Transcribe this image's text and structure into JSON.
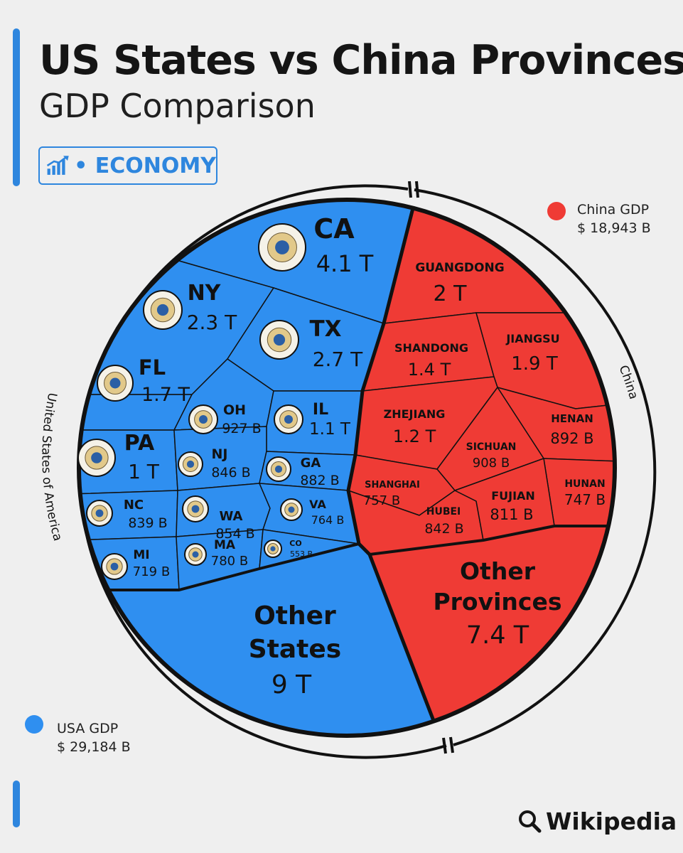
{
  "header": {
    "title": "US States vs China Provinces",
    "subtitle": "GDP Comparison",
    "badge_label": "• ECONOMY",
    "badge_icon": "chart-growth-icon"
  },
  "legend": {
    "china": {
      "name": "China GDP",
      "value": "$ 18,943 B",
      "color": "#ef3b35"
    },
    "usa": {
      "name": "USA GDP",
      "value": "$ 29,184 B",
      "color": "#2f8ff0"
    }
  },
  "ring_labels": {
    "usa": "United States of America",
    "china": "China"
  },
  "source": {
    "label": "Wikipedia",
    "icon": "search-icon"
  },
  "colors": {
    "usa": "#2f8ff0",
    "china": "#ef3b35",
    "background": "#efefef",
    "accent": "#2e86de"
  },
  "chart_data": {
    "type": "voronoi treemap",
    "title": "US States vs China Provinces",
    "subtitle": "GDP Comparison",
    "series": [
      {
        "name": "USA GDP",
        "total": "$ 29,184 B",
        "cells": [
          {
            "id": "CA",
            "label": "CA",
            "value_label": "4.1 T",
            "value_billions": 4100,
            "icon": "california-flag-icon"
          },
          {
            "id": "NY",
            "label": "NY",
            "value_label": "2.3 T",
            "value_billions": 2300,
            "icon": "new-york-seal-icon"
          },
          {
            "id": "TX",
            "label": "TX",
            "value_label": "2.7 T",
            "value_billions": 2700,
            "icon": "texas-flag-icon"
          },
          {
            "id": "FL",
            "label": "FL",
            "value_label": "1.7 T",
            "value_billions": 1700,
            "icon": "florida-flag-icon"
          },
          {
            "id": "OH",
            "label": "OH",
            "value_label": "927 B",
            "value_billions": 927,
            "icon": "ohio-flag-icon"
          },
          {
            "id": "IL",
            "label": "IL",
            "value_label": "1.1 T",
            "value_billions": 1100,
            "icon": "illinois-seal-icon"
          },
          {
            "id": "PA",
            "label": "PA",
            "value_label": "1 T",
            "value_billions": 1000,
            "icon": "pennsylvania-seal-icon"
          },
          {
            "id": "NJ",
            "label": "NJ",
            "value_label": "846 B",
            "value_billions": 846,
            "icon": "new-jersey-seal-icon"
          },
          {
            "id": "GA",
            "label": "GA",
            "value_label": "882 B",
            "value_billions": 882,
            "icon": "georgia-flag-icon"
          },
          {
            "id": "NC",
            "label": "NC",
            "value_label": "839 B",
            "value_billions": 839,
            "icon": "north-carolina-flag-icon"
          },
          {
            "id": "WA",
            "label": "WA",
            "value_label": "854 B",
            "value_billions": 854,
            "icon": "washington-seal-icon"
          },
          {
            "id": "VA",
            "label": "VA",
            "value_label": "764 B",
            "value_billions": 764,
            "icon": "virginia-seal-icon"
          },
          {
            "id": "MI",
            "label": "MI",
            "value_label": "719 B",
            "value_billions": 719,
            "icon": "michigan-seal-icon"
          },
          {
            "id": "MA",
            "label": "MA",
            "value_label": "780 B",
            "value_billions": 780,
            "icon": "massachusetts-seal-icon"
          },
          {
            "id": "CO",
            "label": "CO",
            "value_label": "553 B",
            "value_billions": 553,
            "icon": "colorado-flag-icon"
          },
          {
            "id": "OTHER_US",
            "label": "Other States",
            "value_label": "9 T",
            "value_billions": 9000
          }
        ]
      },
      {
        "name": "China GDP",
        "total": "$ 18,943 B",
        "cells": [
          {
            "id": "GUANGDONG",
            "label": "GUANGDONG",
            "value_label": "2 T",
            "value_billions": 2000
          },
          {
            "id": "SHANDONG",
            "label": "SHANDONG",
            "value_label": "1.4 T",
            "value_billions": 1400
          },
          {
            "id": "JIANGSU",
            "label": "JIANGSU",
            "value_label": "1.9 T",
            "value_billions": 1900
          },
          {
            "id": "ZHEJIANG",
            "label": "ZHEJIANG",
            "value_label": "1.2 T",
            "value_billions": 1200
          },
          {
            "id": "HENAN",
            "label": "HENAN",
            "value_label": "892 B",
            "value_billions": 892
          },
          {
            "id": "SICHUAN",
            "label": "SICHUAN",
            "value_label": "908 B",
            "value_billions": 908
          },
          {
            "id": "SHANGHAI",
            "label": "SHANGHAI",
            "value_label": "757 B",
            "value_billions": 757
          },
          {
            "id": "HUNAN",
            "label": "HUNAN",
            "value_label": "747 B",
            "value_billions": 747
          },
          {
            "id": "HUBEI",
            "label": "HUBEI",
            "value_label": "842 B",
            "value_billions": 842
          },
          {
            "id": "FUJIAN",
            "label": "FUJIAN",
            "value_label": "811 B",
            "value_billions": 811
          },
          {
            "id": "OTHER_CN",
            "label": "Other Provinces",
            "value_label": "7.4 T",
            "value_billions": 7400
          }
        ]
      }
    ]
  }
}
